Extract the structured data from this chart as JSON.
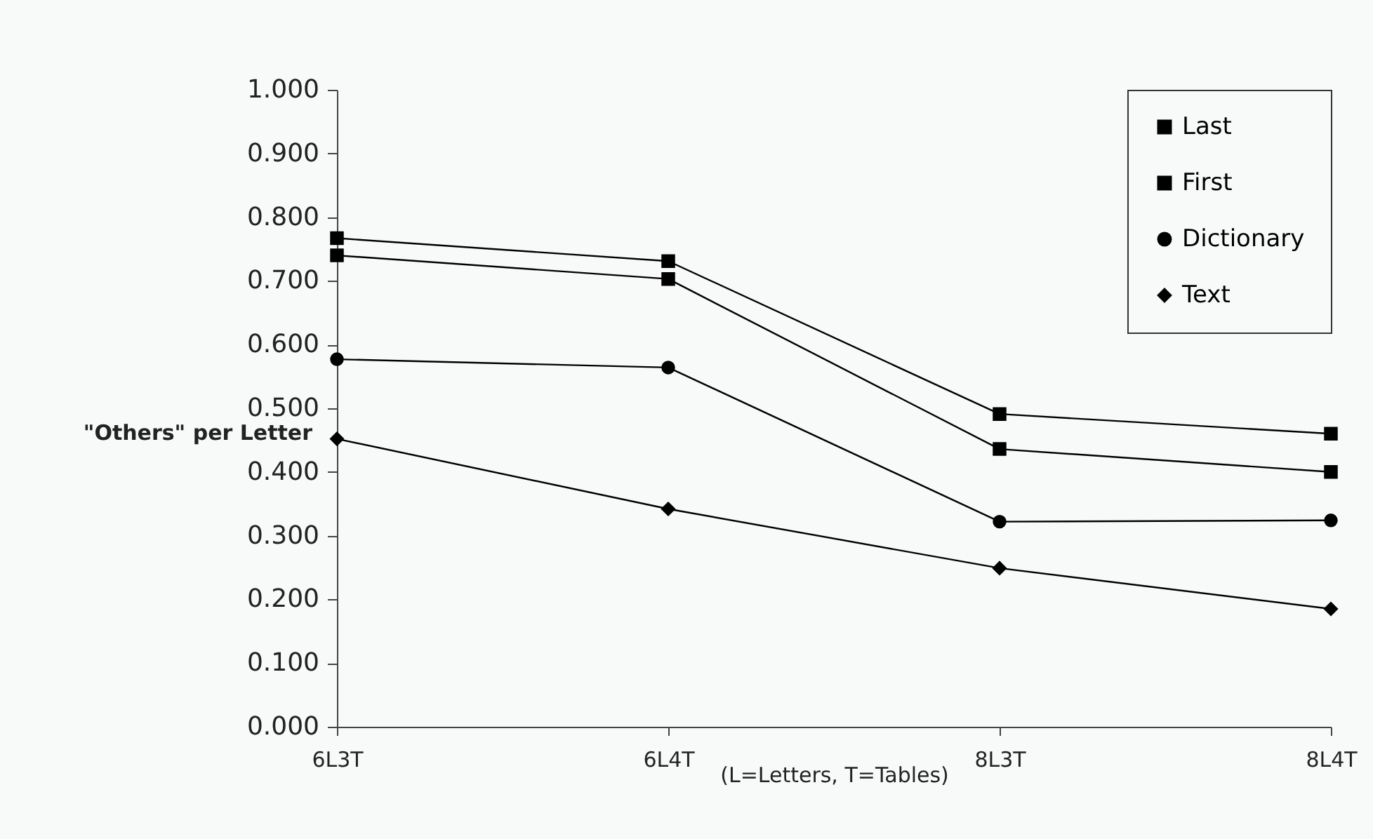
{
  "chart_data": {
    "type": "line",
    "xlabel": "(L=Letters, T=Tables)",
    "ylabel": "\"Others\" per Letter",
    "categories": [
      "6L3T",
      "6L4T",
      "8L3T",
      "8L4T"
    ],
    "series": [
      {
        "name": "Last",
        "color": "#000000",
        "marker": "square",
        "values": [
          0.74,
          0.703,
          0.436,
          0.4
        ]
      },
      {
        "name": "First",
        "color": "#000000",
        "marker": "square",
        "values": [
          0.767,
          0.731,
          0.491,
          0.46
        ]
      },
      {
        "name": "Dictionary",
        "color": "#000000",
        "marker": "circle",
        "values": [
          0.577,
          0.564,
          0.322,
          0.324
        ]
      },
      {
        "name": "Text",
        "color": "#000000",
        "marker": "diamond",
        "values": [
          0.452,
          0.342,
          0.249,
          0.185
        ]
      }
    ],
    "ylim": [
      0,
      1
    ],
    "yticks": [
      {
        "value": 0,
        "label": "0.000"
      },
      {
        "value": 0.1,
        "label": "0.100"
      },
      {
        "value": 0.2,
        "label": "0.200"
      },
      {
        "value": 0.3,
        "label": "0.300"
      },
      {
        "value": 0.4,
        "label": "0.400"
      },
      {
        "value": 0.5,
        "label": "0.500"
      },
      {
        "value": 0.6,
        "label": "0.600"
      },
      {
        "value": 0.7,
        "label": "0.700"
      },
      {
        "value": 0.8,
        "label": "0.800"
      },
      {
        "value": 0.9,
        "label": "0.900"
      },
      {
        "value": 1,
        "label": "1.000"
      }
    ],
    "grid": false,
    "legend": "top right",
    "line_style": "solid"
  }
}
